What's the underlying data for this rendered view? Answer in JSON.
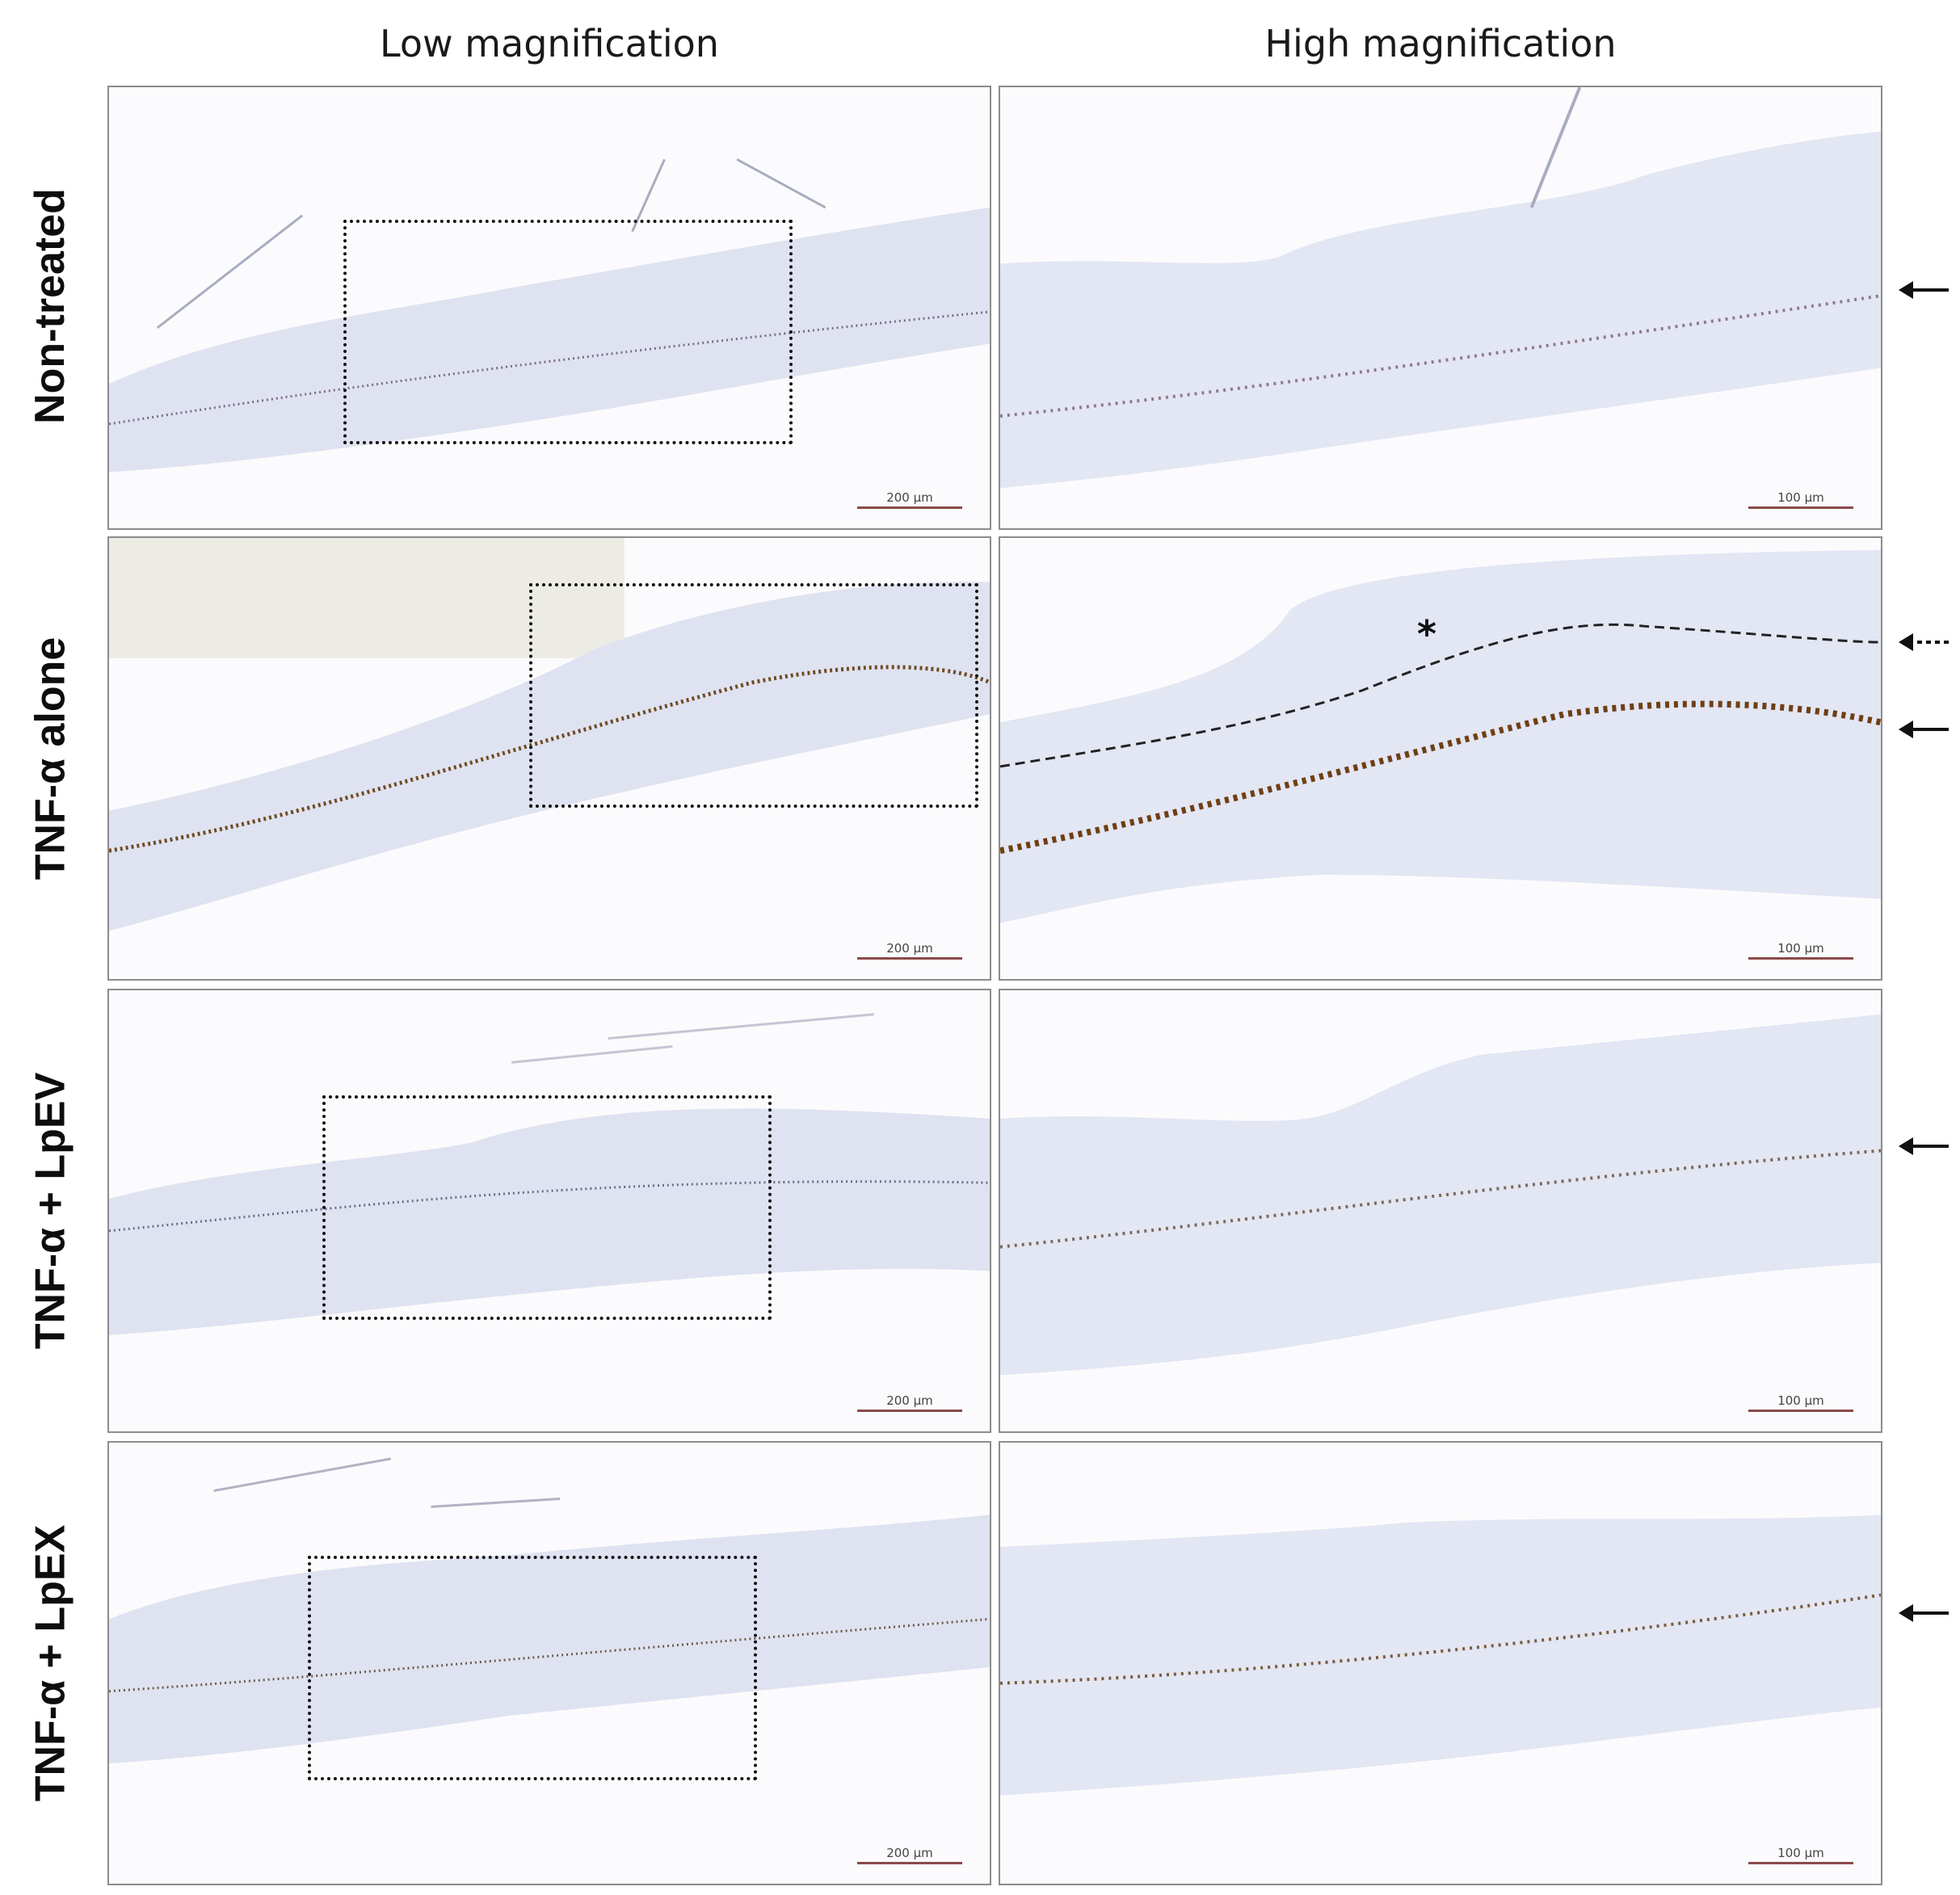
{
  "columns": {
    "low": "Low magnification",
    "high": "High magnification"
  },
  "rows": [
    {
      "label": "Non-treated",
      "marker": "solid-arrow"
    },
    {
      "label": "TNF-α alone",
      "marker": "solid-arrow",
      "secondary_marker": "dashed-arrow",
      "annotation": "*"
    },
    {
      "label": "TNF-α + LpEV",
      "marker": "solid-arrow"
    },
    {
      "label": "TNF-α + LpEX",
      "marker": "solid-arrow"
    }
  ],
  "scale_bars": {
    "low": "200 µm",
    "high": "100 µm"
  },
  "colors": {
    "tissue": "#dfe2f0",
    "nuclei": "#6b78b8",
    "stain": "#7a4a1c",
    "frame": "#8c8c8c"
  }
}
